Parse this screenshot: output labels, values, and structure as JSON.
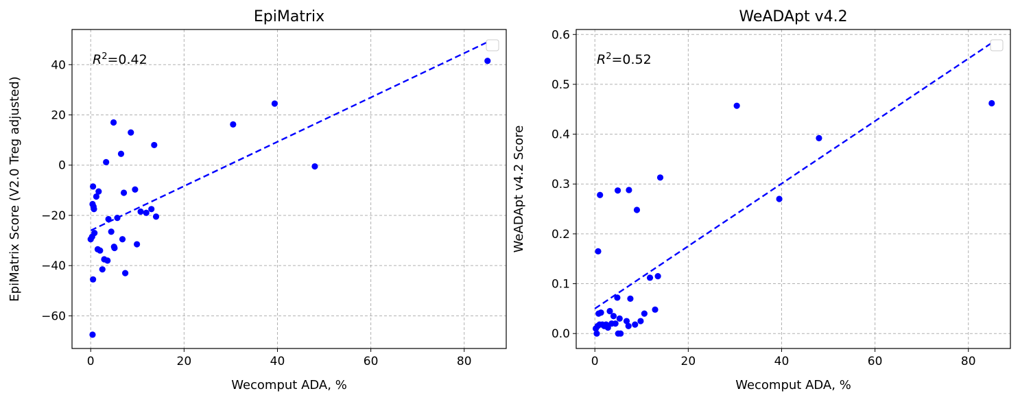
{
  "chart_data": [
    {
      "type": "scatter",
      "title": "EpiMatrix",
      "xlabel": "Wecomput ADA, %",
      "ylabel": "EpiMatrix Score (V2.0 Treg adjusted)",
      "annotation": {
        "prefix": "R",
        "sup": "2",
        "suffix": "=0.42"
      },
      "xlim": [
        -4,
        89
      ],
      "ylim": [
        -73,
        54
      ],
      "xticks": [
        0,
        20,
        40,
        60,
        80
      ],
      "yticks": [
        -60,
        -40,
        -20,
        0,
        20,
        40
      ],
      "grid": true,
      "legend": "empty box, top-right",
      "color": "#0000ff",
      "trendline": {
        "x": [
          0,
          85
        ],
        "y": [
          -26,
          49
        ]
      },
      "points": {
        "x": [
          0,
          0.3,
          0.5,
          0.4,
          0.6,
          0.7,
          0.8,
          1.2,
          1.5,
          1.7,
          2.0,
          2.5,
          2.9,
          3.3,
          3.6,
          3.8,
          4.4,
          4.9,
          5.0,
          5.1,
          5.7,
          6.5,
          6.8,
          7.1,
          7.4,
          8.6,
          9.5,
          9.9,
          10.7,
          11.9,
          13.0,
          13.6,
          14.0,
          0.5,
          0.4,
          30.5,
          39.4,
          48.0,
          85.0
        ],
        "y": [
          -29.5,
          -28.5,
          -8.5,
          -15.5,
          -16.5,
          -17.5,
          -27.0,
          -12.5,
          -33.5,
          -10.5,
          -34.0,
          -41.5,
          -37.5,
          1.2,
          -38.0,
          -21.5,
          -26.5,
          17.0,
          -32.5,
          -33.0,
          -21.0,
          4.5,
          -29.5,
          -11.0,
          -43.0,
          13.0,
          -9.7,
          -31.5,
          -18.5,
          -19.0,
          -17.5,
          8.0,
          -20.5,
          -45.5,
          -67.5,
          16.2,
          24.5,
          -0.5,
          41.5
        ]
      }
    },
    {
      "type": "scatter",
      "title": "WeADApt v4.2",
      "xlabel": "Wecomput ADA, %",
      "ylabel": "WeADApt v4.2 Score",
      "annotation": {
        "prefix": "R",
        "sup": "2",
        "suffix": "=0.52"
      },
      "xlim": [
        -4,
        89
      ],
      "ylim": [
        -0.03,
        0.61
      ],
      "xticks": [
        0,
        20,
        40,
        60,
        80
      ],
      "yticks": [
        0.0,
        0.1,
        0.2,
        0.3,
        0.4,
        0.5,
        0.6
      ],
      "grid": true,
      "legend": "empty box, top-right",
      "color": "#0000ff",
      "trendline": {
        "x": [
          0,
          85
        ],
        "y": [
          0.05,
          0.583
        ]
      },
      "points": {
        "x": [
          0.2,
          0.4,
          0.6,
          0.8,
          1.0,
          1.3,
          1.6,
          2.0,
          2.4,
          2.8,
          3.2,
          3.6,
          4.0,
          4.4,
          4.8,
          5.0,
          5.3,
          5.5,
          6.8,
          7.2,
          7.6,
          8.6,
          9.8,
          10.6,
          11.8,
          12.9,
          13.5,
          14.0,
          0.7,
          1.1,
          4.9,
          7.3,
          9.0,
          30.4,
          39.5,
          48.0,
          85.0
        ],
        "y": [
          0.01,
          0.0,
          0.015,
          0.04,
          0.018,
          0.042,
          0.018,
          0.015,
          0.018,
          0.012,
          0.045,
          0.02,
          0.035,
          0.02,
          0.072,
          0.0,
          0.03,
          0.0,
          0.025,
          0.015,
          0.07,
          0.018,
          0.025,
          0.04,
          0.112,
          0.048,
          0.115,
          0.313,
          0.165,
          0.278,
          0.287,
          0.288,
          0.248,
          0.457,
          0.27,
          0.392,
          0.462
        ]
      }
    }
  ]
}
